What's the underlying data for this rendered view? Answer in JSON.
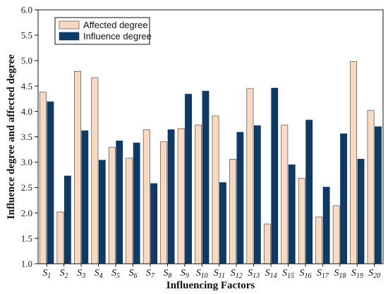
{
  "chart_data": {
    "type": "bar",
    "title": "",
    "xlabel": "Influencing Factors",
    "ylabel": "Influence degree and affected degree",
    "ylim": [
      1.0,
      6.0
    ],
    "yticks": [
      "1.0",
      "1.5",
      "2.0",
      "2.5",
      "3.0",
      "3.5",
      "4.0",
      "4.5",
      "5.0",
      "5.5",
      "6.0"
    ],
    "categories": [
      {
        "main": "S",
        "sub": "1"
      },
      {
        "main": "S",
        "sub": "2"
      },
      {
        "main": "S",
        "sub": "3"
      },
      {
        "main": "S",
        "sub": "4"
      },
      {
        "main": "S",
        "sub": "5"
      },
      {
        "main": "S",
        "sub": "6"
      },
      {
        "main": "S",
        "sub": "7"
      },
      {
        "main": "S",
        "sub": "8"
      },
      {
        "main": "S",
        "sub": "9"
      },
      {
        "main": "S",
        "sub": "10"
      },
      {
        "main": "S",
        "sub": "11"
      },
      {
        "main": "S",
        "sub": "12"
      },
      {
        "main": "S",
        "sub": "13"
      },
      {
        "main": "S",
        "sub": "14"
      },
      {
        "main": "S",
        "sub": "15"
      },
      {
        "main": "S",
        "sub": "16"
      },
      {
        "main": "S",
        "sub": "17"
      },
      {
        "main": "S",
        "sub": "18"
      },
      {
        "main": "S",
        "sub": "19"
      },
      {
        "main": "S",
        "sub": "20"
      }
    ],
    "series": [
      {
        "name": "Affected degree",
        "color": "#fad9c1",
        "values": [
          4.38,
          2.02,
          4.79,
          4.66,
          3.29,
          3.08,
          3.64,
          3.4,
          3.66,
          3.73,
          3.91,
          3.06,
          4.45,
          1.78,
          3.73,
          2.68,
          1.92,
          2.14,
          4.98,
          4.02
        ]
      },
      {
        "name": "Influence degree",
        "color": "#0d3b66",
        "values": [
          4.19,
          2.73,
          3.62,
          3.04,
          3.42,
          3.38,
          2.58,
          3.64,
          4.34,
          4.4,
          2.6,
          3.59,
          3.72,
          4.46,
          2.95,
          3.83,
          2.51,
          3.56,
          3.06,
          3.7
        ]
      }
    ],
    "legend": "top-left",
    "grid": false
  }
}
